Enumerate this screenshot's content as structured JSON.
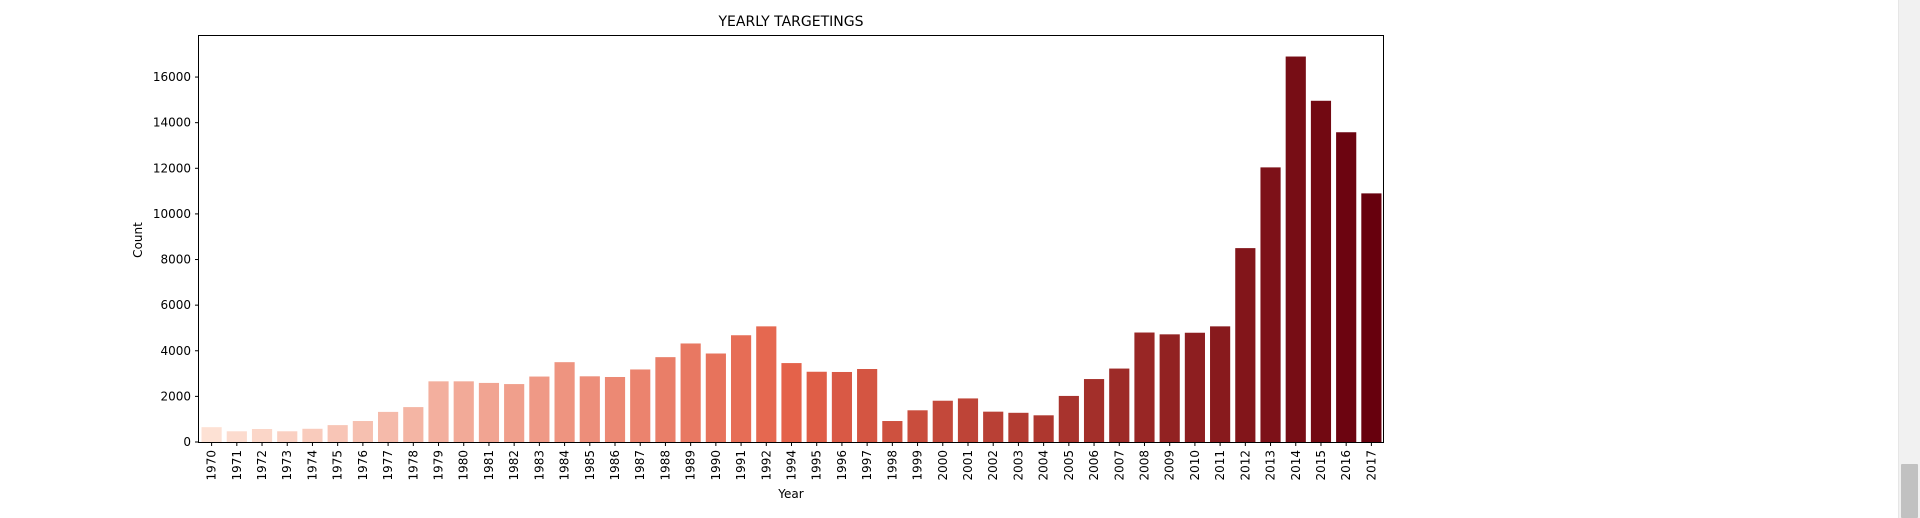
{
  "chart_data": {
    "type": "bar",
    "title": "YEARLY TARGETINGS",
    "xlabel": "Year",
    "ylabel": "Count",
    "ylim": [
      0,
      17800
    ],
    "yticks": [
      0,
      2000,
      4000,
      6000,
      8000,
      10000,
      12000,
      14000,
      16000
    ],
    "grid": false,
    "palette": "Reds",
    "categories": [
      "1970",
      "1971",
      "1972",
      "1973",
      "1974",
      "1975",
      "1976",
      "1977",
      "1978",
      "1979",
      "1980",
      "1981",
      "1982",
      "1983",
      "1984",
      "1985",
      "1986",
      "1987",
      "1988",
      "1989",
      "1990",
      "1991",
      "1992",
      "1994",
      "1995",
      "1996",
      "1997",
      "1998",
      "1999",
      "2000",
      "2001",
      "2002",
      "2003",
      "2004",
      "2005",
      "2006",
      "2007",
      "2008",
      "2009",
      "2010",
      "2011",
      "2012",
      "2013",
      "2014",
      "2015",
      "2016",
      "2017"
    ],
    "values": [
      650,
      470,
      570,
      470,
      580,
      740,
      920,
      1320,
      1530,
      2660,
      2660,
      2590,
      2540,
      2870,
      3500,
      2880,
      2850,
      3180,
      3720,
      4320,
      3880,
      4680,
      5070,
      3460,
      3080,
      3070,
      3200,
      920,
      1390,
      1810,
      1910,
      1330,
      1280,
      1170,
      2020,
      2760,
      3220,
      4800,
      4720,
      4790,
      5070,
      8500,
      12040,
      16900,
      14960,
      13580,
      10900
    ]
  },
  "colors": {
    "palette_start": "#fde1d4",
    "palette_mid": "#e4624a",
    "palette_end": "#67000d",
    "axis": "#000000"
  },
  "scrollbar": {
    "icon": "vertical-scrollbar"
  }
}
